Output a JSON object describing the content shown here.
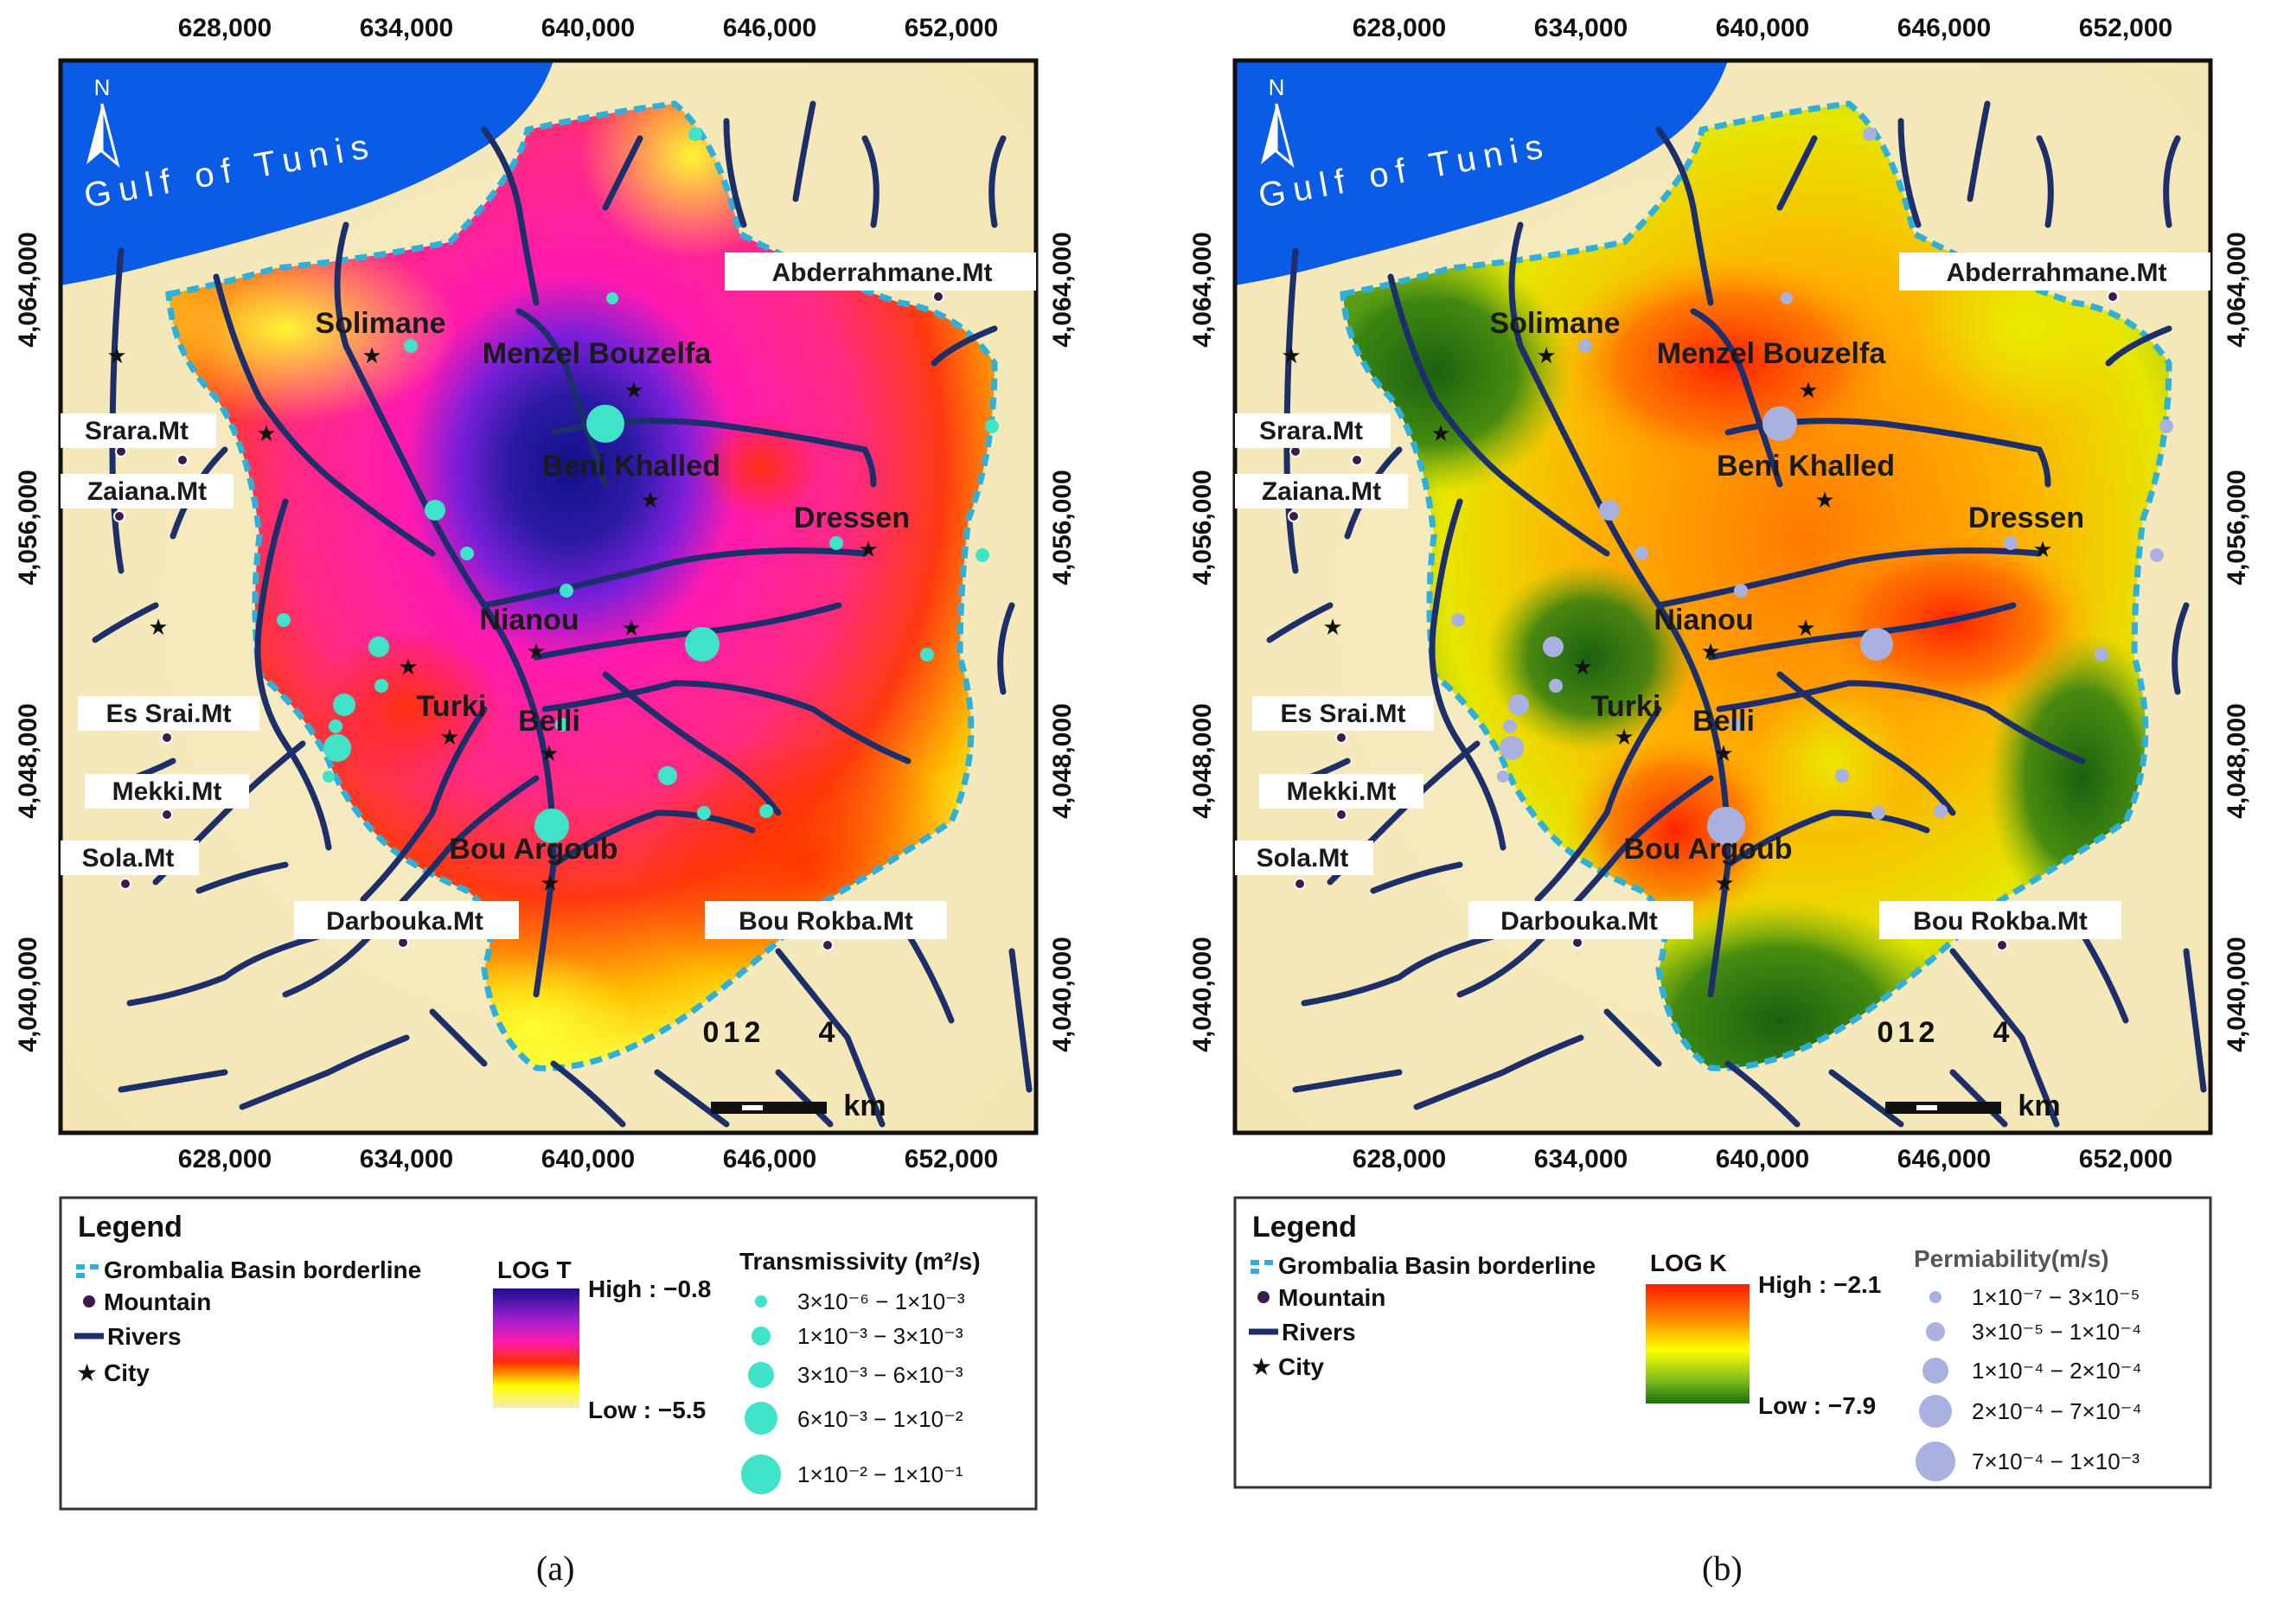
{
  "figure": {
    "panels": [
      {
        "id": "a",
        "caption": "(a)",
        "gulf_label": "Gulf of Tunis",
        "north_label": "N",
        "x_ticks": [
          "628,000",
          "634,000",
          "640,000",
          "646,000",
          "652,000"
        ],
        "y_ticks": [
          "4,064,000",
          "4,056,000",
          "4,048,000",
          "4,040,000"
        ],
        "scale_numbers": [
          "0",
          "1",
          "2",
          "4"
        ],
        "scale_unit": "km",
        "mountains": [
          "Abderrahmane.Mt",
          "Srara.Mt",
          "Zaiana.Mt",
          "Es Srai.Mt",
          "Mekki.Mt",
          "Sola.Mt",
          "Darbouka.Mt",
          "Bou Rokba.Mt"
        ],
        "cities": [
          "Solimane",
          "Menzel Bouzelfa",
          "Beni Khalled",
          "Dressen",
          "Nianou",
          "Turki",
          "Belli",
          "Bou Argoub"
        ],
        "legend": {
          "title": "Legend",
          "items": [
            "Grombalia Basin borderline",
            "Mountain",
            "Rivers",
            "City"
          ],
          "ramp_title": "LOG T",
          "high": "High : −0.8",
          "low": "Low : −5.5",
          "classes_title": "Transmissivity (m²/s)",
          "classes": [
            "3×10⁻⁶ − 1×10⁻³",
            "1×10⁻³ − 3×10⁻³",
            "3×10⁻³ − 6×10⁻³",
            "6×10⁻³ − 1×10⁻²",
            "1×10⁻² − 1×10⁻¹"
          ]
        },
        "colors": {
          "point": "#3fe3c7",
          "ramp": [
            "#f5ecb8",
            "#ffff00",
            "#ff3000",
            "#ff1ab0",
            "#7a1fd9",
            "#1a0f8a"
          ]
        }
      },
      {
        "id": "b",
        "caption": "(b)",
        "gulf_label": "Gulf of Tunis",
        "north_label": "N",
        "x_ticks": [
          "628,000",
          "634,000",
          "640,000",
          "646,000",
          "652,000"
        ],
        "y_ticks": [
          "4,064,000",
          "4,056,000",
          "4,048,000",
          "4,040,000"
        ],
        "scale_numbers": [
          "0",
          "1",
          "2",
          "4"
        ],
        "scale_unit": "km",
        "mountains": [
          "Abderrahmane.Mt",
          "Srara.Mt",
          "Zaiana.Mt",
          "Es Srai.Mt",
          "Mekki.Mt",
          "Sola.Mt",
          "Darbouka.Mt",
          "Bou Rokba.Mt"
        ],
        "cities": [
          "Solimane",
          "Menzel Bouzelfa",
          "Beni Khalled",
          "Dressen",
          "Nianou",
          "Turki",
          "Belli",
          "Bou Argoub"
        ],
        "legend": {
          "title": "Legend",
          "items": [
            "Grombalia Basin borderline",
            "Mountain",
            "Rivers",
            "City"
          ],
          "ramp_title": "LOG K",
          "high": "High : −2.1",
          "low": "Low : −7.9",
          "classes_title": "Permiability(m/s)",
          "classes": [
            "1×10⁻⁷ − 3×10⁻⁵",
            "3×10⁻⁵ − 1×10⁻⁴",
            "1×10⁻⁴ − 2×10⁻⁴",
            "2×10⁻⁴ − 7×10⁻⁴",
            "7×10⁻⁴ − 1×10⁻³"
          ]
        },
        "colors": {
          "point": "#a9b1e0",
          "ramp": [
            "#1f6e10",
            "#7fbf1a",
            "#ffff00",
            "#ff8c00",
            "#ff1a00"
          ]
        }
      }
    ]
  }
}
